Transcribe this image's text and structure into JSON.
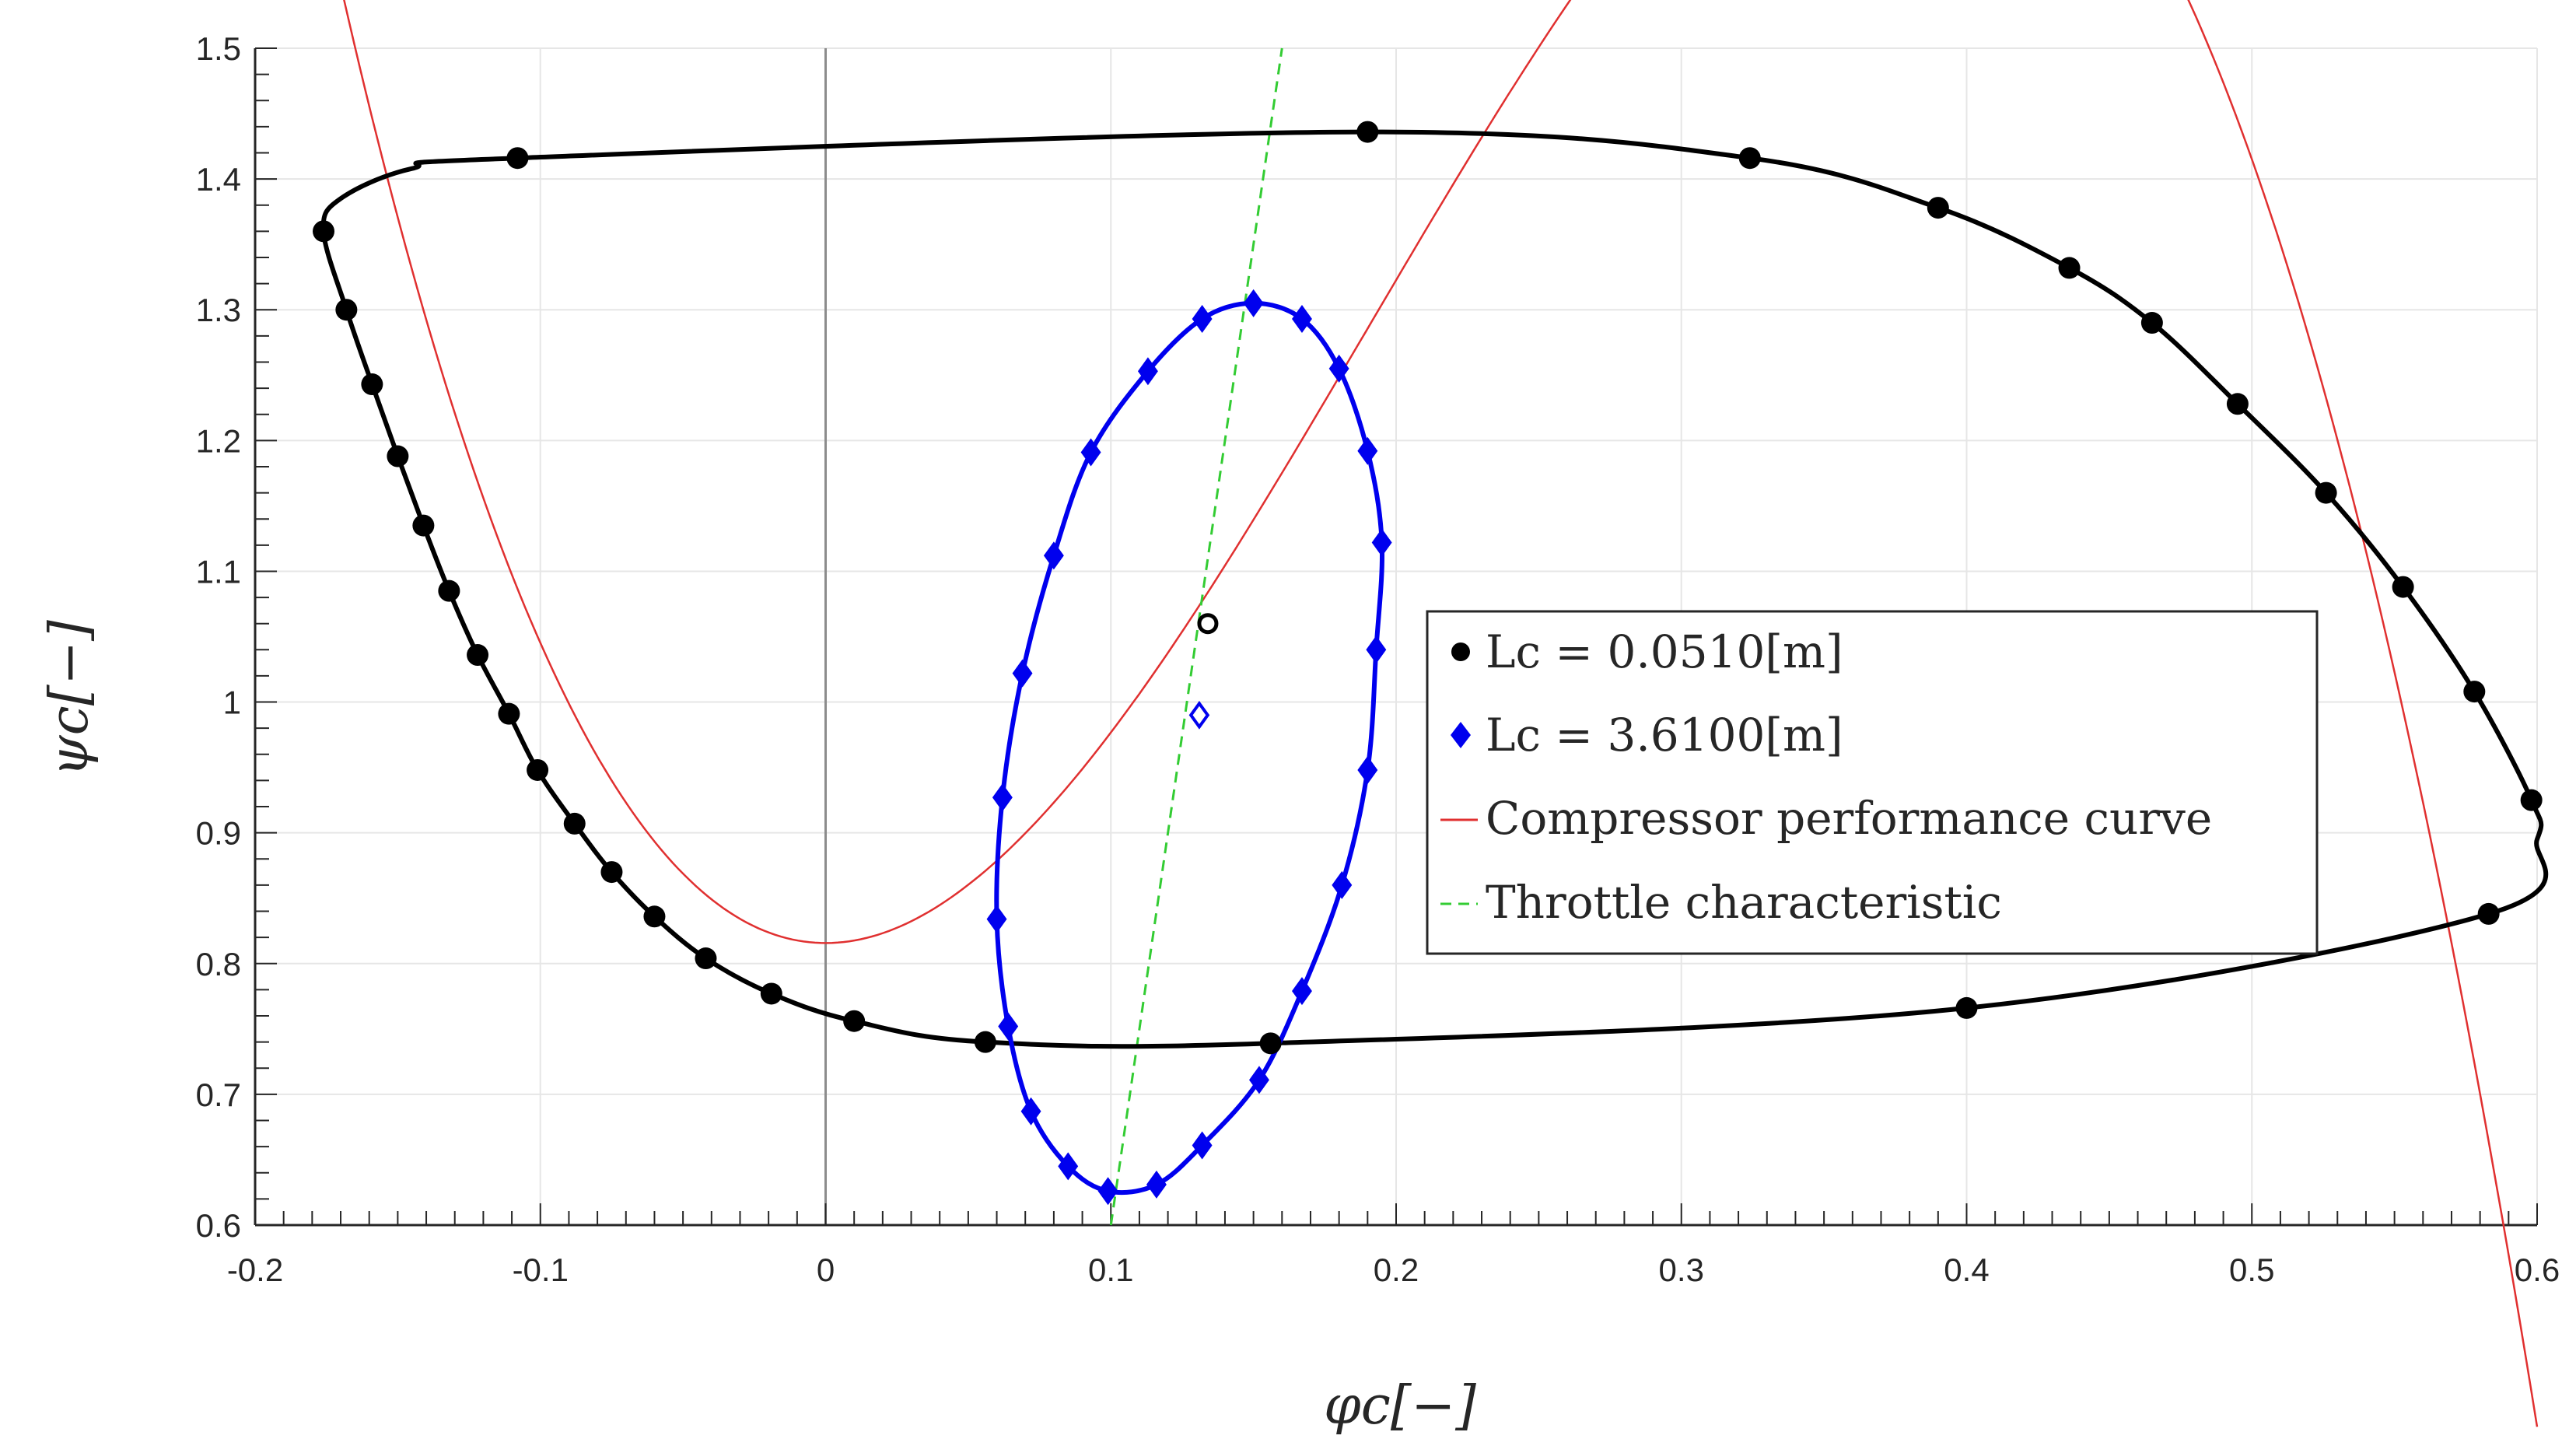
{
  "chart_data": {
    "type": "line",
    "title": "",
    "xlabel": "φc[−]",
    "ylabel": "ψc[−]",
    "xlim": [
      -0.2,
      0.6
    ],
    "ylim": [
      0.6,
      1.5
    ],
    "xticks": [
      "-0.2",
      "-0.1",
      "0",
      "0.1",
      "0.2",
      "0.3",
      "0.4",
      "0.5",
      "0.6"
    ],
    "yticks": [
      "0.6",
      "0.7",
      "0.8",
      "0.9",
      "1",
      "1.1",
      "1.2",
      "1.3",
      "1.4",
      "1.5"
    ],
    "grid": true,
    "legend_position": "center-right",
    "legend": [
      "Lc = 0.0510[m]",
      "Lc = 3.6100[m]",
      "Compressor performance curve",
      "Throttle characteristic"
    ],
    "colors": {
      "series_black": "#000000",
      "series_blue": "#0000ee",
      "compressor": "#e03030",
      "throttle": "#33cc33",
      "grid": "#e6e6e6",
      "zero_line": "#8c8c8c"
    },
    "series": [
      {
        "name": "Lc = 0.0510[m]",
        "color": "#000000",
        "marker": "circle",
        "equilibrium": [
          0.134,
          1.06
        ],
        "points": [
          [
            -0.108,
            1.416
          ],
          [
            0.19,
            1.436
          ],
          [
            0.324,
            1.416
          ],
          [
            0.39,
            1.378
          ],
          [
            0.436,
            1.332
          ],
          [
            0.465,
            1.29
          ],
          [
            0.495,
            1.228
          ],
          [
            0.526,
            1.16
          ],
          [
            0.553,
            1.088
          ],
          [
            0.578,
            1.008
          ],
          [
            0.598,
            0.925
          ],
          [
            0.583,
            0.838
          ],
          [
            0.4,
            0.766
          ],
          [
            0.156,
            0.739
          ],
          [
            0.056,
            0.74
          ],
          [
            0.01,
            0.756
          ],
          [
            -0.019,
            0.777
          ],
          [
            -0.042,
            0.804
          ],
          [
            -0.06,
            0.836
          ],
          [
            -0.075,
            0.87
          ],
          [
            -0.088,
            0.907
          ],
          [
            -0.101,
            0.948
          ],
          [
            -0.111,
            0.991
          ],
          [
            -0.122,
            1.036
          ],
          [
            -0.132,
            1.085
          ],
          [
            -0.141,
            1.135
          ],
          [
            -0.15,
            1.188
          ],
          [
            -0.159,
            1.243
          ],
          [
            -0.168,
            1.3
          ],
          [
            -0.176,
            1.36
          ]
        ]
      },
      {
        "name": "Lc = 3.6100[m]",
        "color": "#0000ee",
        "marker": "diamond",
        "equilibrium": [
          0.131,
          0.99
        ],
        "points": [
          [
            0.15,
            1.305
          ],
          [
            0.167,
            1.293
          ],
          [
            0.18,
            1.255
          ],
          [
            0.19,
            1.192
          ],
          [
            0.195,
            1.122
          ],
          [
            0.193,
            1.04
          ],
          [
            0.19,
            0.948
          ],
          [
            0.181,
            0.86
          ],
          [
            0.167,
            0.779
          ],
          [
            0.152,
            0.711
          ],
          [
            0.132,
            0.661
          ],
          [
            0.116,
            0.631
          ],
          [
            0.099,
            0.626
          ],
          [
            0.085,
            0.645
          ],
          [
            0.072,
            0.687
          ],
          [
            0.064,
            0.752
          ],
          [
            0.06,
            0.834
          ],
          [
            0.062,
            0.927
          ],
          [
            0.069,
            1.022
          ],
          [
            0.08,
            1.112
          ],
          [
            0.093,
            1.191
          ],
          [
            0.113,
            1.253
          ],
          [
            0.132,
            1.293
          ]
        ]
      },
      {
        "name": "Compressor performance curve",
        "color": "#e03030",
        "coefficients": {
          "psi0": 0.8157,
          "H": 0.4699,
          "W": 0.19,
          "phi_offset": 0.19
        }
      },
      {
        "name": "Throttle characteristic",
        "color": "#33cc33",
        "points": [
          [
            0.1,
            0.6
          ],
          [
            0.16,
            1.5
          ]
        ]
      }
    ]
  }
}
